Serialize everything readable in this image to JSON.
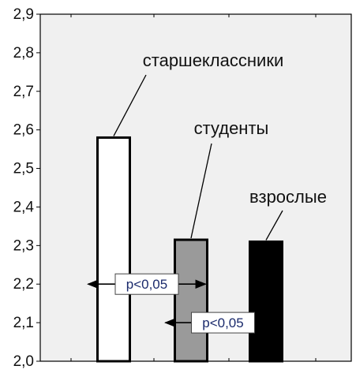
{
  "colors": {
    "plot_bg": "#f0f0f0",
    "frame": "#000000",
    "annotation_text": "#1a2a6c"
  },
  "chart_data": {
    "type": "bar",
    "categories": [
      "старшеклассники",
      "студенты",
      "взрослые"
    ],
    "values": [
      2.58,
      2.315,
      2.31
    ],
    "bar_colors": [
      "#ffffff",
      "#9a9a9a",
      "#000000"
    ],
    "ylim": [
      2.0,
      2.9
    ],
    "yticks": [
      "2,0",
      "2,1",
      "2,2",
      "2,3",
      "2,4",
      "2,5",
      "2,6",
      "2,7",
      "2,8",
      "2,9"
    ],
    "grid": false,
    "annotations": [
      {
        "text": "p<0,05",
        "from": "старшеклассники",
        "to": "студенты",
        "y": 2.2
      },
      {
        "text": "p<0,05",
        "from": "студенты",
        "to": "взрослые",
        "y": 2.1
      }
    ]
  }
}
